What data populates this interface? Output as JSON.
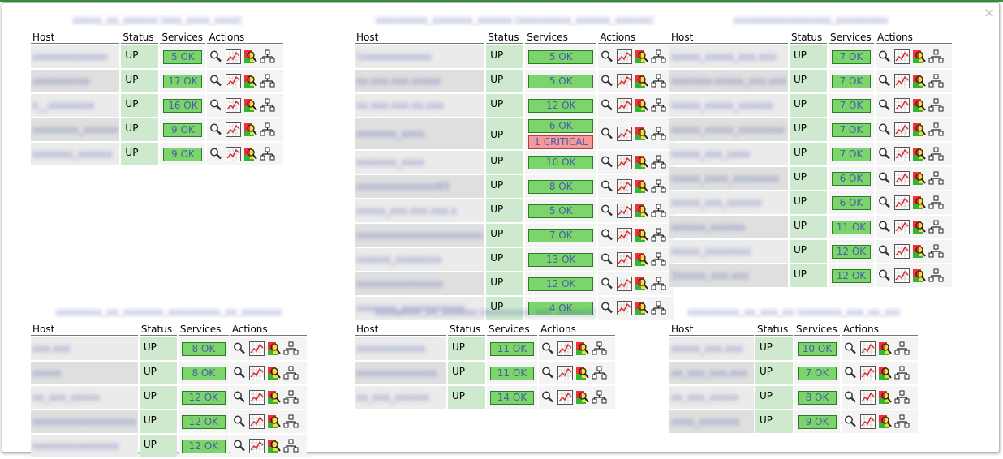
{
  "dialog": {
    "close_glyph": "✕"
  },
  "headers": {
    "host": "Host",
    "status": "Status",
    "services": "Services",
    "actions": "Actions"
  },
  "icons": [
    "magnifier-icon",
    "graph-icon",
    "status-map-icon",
    "network-icon"
  ],
  "colors": {
    "up_cell": "#cfe9cf",
    "ok_badge": "#7bd56b",
    "critical_badge": "#f59a9a",
    "link": "#4b5dac"
  },
  "groups": [
    {
      "title": "xxxxx_xx_xxxxxx (xxx_xxxx_xxxx)",
      "rows": [
        {
          "host": "xxxxxxxxxxxxx",
          "status": "UP",
          "services": [
            "5 OK"
          ]
        },
        {
          "host": "xxxxxxxxxx",
          "status": "UP",
          "services": [
            "17 OK"
          ]
        },
        {
          "host": "x__xxxxxxxx",
          "status": "UP",
          "services": [
            "16 OK"
          ]
        },
        {
          "host": "xxxxxxxx_xxxxxx",
          "status": "UP",
          "services": [
            "9 OK"
          ]
        },
        {
          "host": "xxxxxxx_xxxxxx",
          "status": "UP",
          "services": [
            "9 OK"
          ]
        }
      ]
    },
    {
      "title": "xxxxxxxxx_xxxxxxx_xxxxxx (xxxxxxxxx_xxxxxx_xxxxxx)",
      "rows": [
        {
          "host": "1xxxxxxxxxxxx",
          "status": "UP",
          "services": [
            "5 OK"
          ]
        },
        {
          "host": "xx.xxx.xxx.xxxxx",
          "status": "UP",
          "services": [
            "5 OK"
          ]
        },
        {
          "host": "xx.xxx.xxx.xx.xxx",
          "status": "UP",
          "services": [
            "12 OK"
          ]
        },
        {
          "host": "xxxxxxx_xxxx",
          "status": "UP",
          "services": [
            "6 OK",
            "1 CRITICAL"
          ]
        },
        {
          "host": "xxxxxxx_xxxx",
          "status": "UP",
          "services": [
            "10 OK"
          ]
        },
        {
          "host": "xxxxxxxxxxxxxx93",
          "status": "UP",
          "services": [
            "8 OK"
          ]
        },
        {
          "host": "xxxxx_xxx.xxx.xxx.x",
          "status": "UP",
          "services": [
            "5 OK"
          ]
        },
        {
          "host": "xxxxxxxxxxxxxxxxxxxxxx",
          "status": "UP",
          "services": [
            "7 OK"
          ]
        },
        {
          "host": "xxxxxx_xxxxxxxx",
          "status": "UP",
          "services": [
            "13 OK"
          ]
        },
        {
          "host": "xxxxxxxxxxxxxxx",
          "status": "UP",
          "services": [
            "12 OK"
          ]
        },
        {
          "host": "xxxxxxx_xxxxxxxxxxx",
          "status": "UP",
          "services": [
            "4 OK"
          ]
        }
      ]
    },
    {
      "title": "xxxxxxxxxxxxxxxxx_xxxxxxxxx",
      "rows": [
        {
          "host": "xxxxx_xxxxx_xxx.xxx",
          "status": "UP",
          "services": [
            "7 OK"
          ]
        },
        {
          "host": "xxxxxxx-xxxxx_xxx.xxx",
          "status": "UP",
          "services": [
            "7 OK"
          ]
        },
        {
          "host": "xxxxx_xxxxx_xxxxxx",
          "status": "UP",
          "services": [
            "7 OK"
          ]
        },
        {
          "host": "xxxxx_xxxxx_xxxxxxxx",
          "status": "UP",
          "services": [
            "7 OK"
          ]
        },
        {
          "host": "xxxxx_xxx_xxxx",
          "status": "UP",
          "services": [
            "7 OK"
          ]
        },
        {
          "host": "xxxxx_xxxx_xxxxxxxx",
          "status": "UP",
          "services": [
            "6 OK"
          ]
        },
        {
          "host": "xxxxx_xxx_xxxxxx",
          "status": "UP",
          "services": [
            "6 OK"
          ]
        },
        {
          "host": "xxxxxx_xxxxxx",
          "status": "UP",
          "services": [
            "11 OK"
          ]
        },
        {
          "host": "xxxxx_xxxxxxxx",
          "status": "UP",
          "services": [
            "12 OK"
          ]
        },
        {
          "host": "2xxxxx_xxx.xxx",
          "status": "UP",
          "services": [
            "12 OK"
          ]
        }
      ]
    },
    {
      "title": "xxxxxxxx_xx_xxxxxxx_xxxxxxxxx_xx_xxxxxxx",
      "rows": [
        {
          "host": "xxx.xxx",
          "status": "UP",
          "services": [
            "8 OK"
          ]
        },
        {
          "host": "xxxxx",
          "status": "UP",
          "services": [
            "8 OK"
          ]
        },
        {
          "host": "xx_xxx_xxxxx",
          "status": "UP",
          "services": [
            "12 OK"
          ]
        },
        {
          "host": "xxxxxxxxxxxxxxxxxx",
          "status": "UP",
          "services": [
            "12 OK"
          ]
        },
        {
          "host": "xxxxxxxxxxxxxxx",
          "status": "UP",
          "services": [
            "12 OK"
          ]
        }
      ]
    },
    {
      "title": "xxxxxxxx_xx_xxxxxx (xxxxxxxx_xxx_xxxxxx)",
      "rows": [
        {
          "host": "xxxxxxxxxxxx",
          "status": "UP",
          "services": [
            "11 OK"
          ]
        },
        {
          "host": "xxxxxxxxxxxxxx",
          "status": "UP",
          "services": [
            "11 OK"
          ]
        },
        {
          "host": "xx_xxx_xxxxxx",
          "status": "UP",
          "services": [
            "14 OK"
          ]
        }
      ]
    },
    {
      "title": "xxxxxxxxx_xx_xxx_xx (xxxxxxx_xxx_xx_xx)",
      "rows": [
        {
          "host": "xxxxx_xxx.xxx",
          "status": "UP",
          "services": [
            "10 OK"
          ]
        },
        {
          "host": "xx_xxx_xxx.xxx",
          "status": "UP",
          "services": [
            "7 OK"
          ]
        },
        {
          "host": "xx_xxx_xxxxx",
          "status": "UP",
          "services": [
            "8 OK"
          ]
        },
        {
          "host": "xxxx_xxxxxxx",
          "status": "UP",
          "services": [
            "9 OK"
          ]
        }
      ]
    }
  ]
}
